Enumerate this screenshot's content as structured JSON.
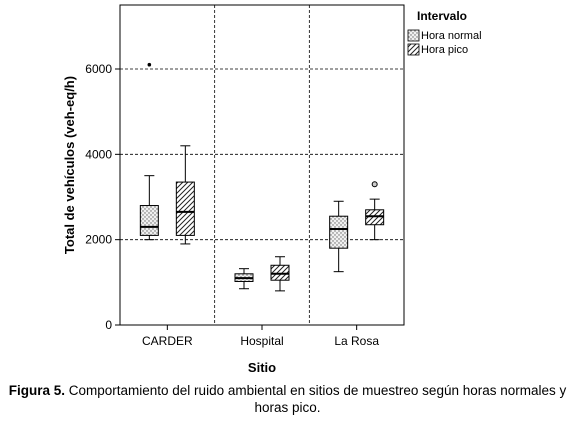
{
  "chart_data": {
    "type": "boxplot",
    "xlabel": "Sitio",
    "ylabel": "Total de vehículos (veh-eq/h)",
    "ylim": [
      0,
      7500
    ],
    "yticks": [
      0,
      2000,
      4000,
      6000
    ],
    "grid": true,
    "legend_position": "top-right",
    "legend_title": "Intervalo",
    "categories": [
      "CARDER",
      "Hospital",
      "La Rosa"
    ],
    "series": [
      {
        "name": "Hora normal",
        "pattern": "dots",
        "boxes": [
          {
            "min": 2000,
            "q1": 2100,
            "median": 2300,
            "q3": 2800,
            "max": 3500,
            "outliers": [
              {
                "value": 6100,
                "marker": "dot"
              }
            ]
          },
          {
            "min": 850,
            "q1": 1020,
            "median": 1100,
            "q3": 1200,
            "max": 1320,
            "outliers": []
          },
          {
            "min": 1250,
            "q1": 1800,
            "median": 2250,
            "q3": 2550,
            "max": 2900,
            "outliers": []
          }
        ]
      },
      {
        "name": "Hora pico",
        "pattern": "diagonal",
        "boxes": [
          {
            "min": 1900,
            "q1": 2100,
            "median": 2650,
            "q3": 3350,
            "max": 4200,
            "outliers": []
          },
          {
            "min": 800,
            "q1": 1050,
            "median": 1200,
            "q3": 1400,
            "max": 1600,
            "outliers": []
          },
          {
            "min": 2000,
            "q1": 2350,
            "median": 2550,
            "q3": 2700,
            "max": 2950,
            "outliers": [
              {
                "value": 3300,
                "marker": "circle"
              }
            ]
          }
        ]
      }
    ]
  },
  "caption": {
    "lead": "Figura 5.",
    "text": " Comportamiento del ruido ambiental en sitios de muestreo según horas normales y horas pico."
  }
}
